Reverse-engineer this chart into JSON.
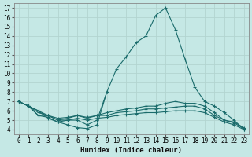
{
  "xlabel": "Humidex (Indice chaleur)",
  "bg_color": "#c5e8e5",
  "grid_color": "#b2d4d0",
  "line_color": "#1a6b6b",
  "xlim": [
    -0.5,
    23.5
  ],
  "ylim": [
    3.5,
    17.5
  ],
  "xticks": [
    0,
    1,
    2,
    3,
    4,
    5,
    6,
    7,
    8,
    9,
    10,
    11,
    12,
    13,
    14,
    15,
    16,
    17,
    18,
    19,
    20,
    21,
    22,
    23
  ],
  "yticks": [
    4,
    5,
    6,
    7,
    8,
    9,
    10,
    11,
    12,
    13,
    14,
    15,
    16,
    17
  ],
  "curves": [
    {
      "x": [
        0,
        1,
        2,
        3,
        4,
        5,
        6,
        7,
        8,
        9,
        10,
        11,
        12,
        13,
        14,
        15,
        16,
        17,
        18,
        19,
        20,
        21,
        22,
        23
      ],
      "y": [
        7.0,
        6.5,
        6.0,
        5.5,
        5.0,
        5.0,
        5.0,
        4.5,
        5.0,
        8.0,
        10.5,
        11.8,
        13.3,
        14.0,
        16.2,
        17.0,
        14.7,
        11.5,
        8.5,
        7.0,
        6.5,
        5.8,
        5.0,
        4.0
      ]
    },
    {
      "x": [
        0,
        1,
        2,
        3,
        4,
        5,
        6,
        7,
        8,
        9
      ],
      "y": [
        7.0,
        6.5,
        6.0,
        5.2,
        4.8,
        4.5,
        4.2,
        4.1,
        4.5,
        8.0
      ]
    },
    {
      "x": [
        0,
        1,
        2,
        3,
        4,
        5,
        6,
        7,
        8,
        9,
        10,
        11,
        12,
        13,
        14,
        15,
        16,
        17,
        18,
        19,
        20,
        21,
        22,
        23
      ],
      "y": [
        7.0,
        6.5,
        5.5,
        5.3,
        4.8,
        5.0,
        5.2,
        5.0,
        5.2,
        5.3,
        5.5,
        5.6,
        5.7,
        5.8,
        5.8,
        5.9,
        6.0,
        6.0,
        6.0,
        5.8,
        5.3,
        4.8,
        4.5,
        4.0
      ]
    },
    {
      "x": [
        0,
        1,
        2,
        3,
        4,
        5,
        6,
        7,
        8,
        9,
        10,
        11,
        12,
        13,
        14,
        15,
        16,
        17,
        18,
        19,
        20,
        21,
        22,
        23
      ],
      "y": [
        7.0,
        6.5,
        5.5,
        5.5,
        5.0,
        5.2,
        5.5,
        5.2,
        5.5,
        5.5,
        5.8,
        5.9,
        6.0,
        6.2,
        6.2,
        6.3,
        6.4,
        6.5,
        6.5,
        6.2,
        5.5,
        5.0,
        4.7,
        4.1
      ]
    },
    {
      "x": [
        0,
        1,
        2,
        3,
        4,
        5,
        6,
        7,
        8,
        9,
        10,
        11,
        12,
        13,
        14,
        15,
        16,
        17,
        18,
        19,
        20,
        21,
        22,
        23
      ],
      "y": [
        7.0,
        6.5,
        5.8,
        5.5,
        5.2,
        5.3,
        5.5,
        5.3,
        5.5,
        5.8,
        6.0,
        6.2,
        6.3,
        6.5,
        6.5,
        6.8,
        7.0,
        6.8,
        6.8,
        6.5,
        5.8,
        5.0,
        4.8,
        4.2
      ]
    }
  ]
}
